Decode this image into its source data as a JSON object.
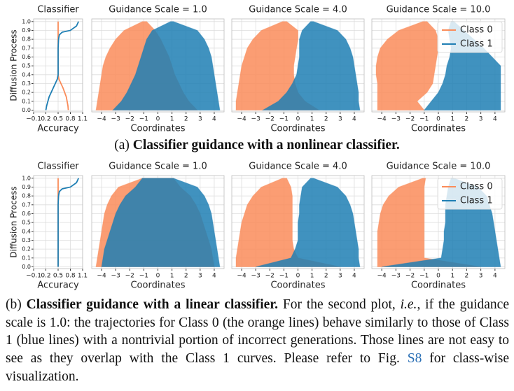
{
  "chart_data": [
    {
      "type": "accuracy",
      "title": "Classifier",
      "xlabel": "Accuracy",
      "ylabel": "Diffusion Process",
      "xlim": [
        -0.1,
        1.1
      ],
      "ylim": [
        -0.02,
        1.03
      ],
      "xticks": [
        {
          "value": -0.1,
          "label": "−0.1"
        },
        0.2,
        0.5,
        0.8,
        1.1
      ],
      "yticks": [
        {
          "value": 0,
          "label": "0.0"
        },
        0.1,
        0.2,
        0.3,
        0.4,
        0.5,
        0.6,
        0.7,
        0.8,
        0.9,
        {
          "value": 1,
          "label": "1.0"
        }
      ],
      "grid": true,
      "y": [
        0,
        0.05,
        0.1,
        0.15,
        0.2,
        0.25,
        0.3,
        0.35,
        0.4,
        0.5,
        0.6,
        0.7,
        0.8,
        0.85,
        0.88,
        0.9,
        0.95,
        1.0
      ],
      "series": [
        {
          "name": "Class 0",
          "color": "#fa8c5a",
          "x": [
            0.75,
            0.74,
            0.72,
            0.7,
            0.66,
            0.62,
            0.57,
            0.52,
            0.5,
            0.5,
            0.5,
            0.5,
            0.5,
            0.5,
            0.5,
            0.5,
            0.5,
            0.5
          ]
        },
        {
          "name": "Class 1",
          "color": "#1f7fb4",
          "x": [
            0.2,
            0.22,
            0.25,
            0.28,
            0.33,
            0.38,
            0.43,
            0.48,
            0.5,
            0.5,
            0.5,
            0.5,
            0.51,
            0.53,
            0.6,
            0.8,
            0.95,
            1.0
          ]
        }
      ]
    },
    {
      "type": "trajectory",
      "title": "Guidance Scale = 1.0",
      "xlabel": "Coordinates",
      "xlim": [
        -4.7,
        4.7
      ],
      "ylim": [
        -0.02,
        1.03
      ],
      "xticks": [
        {
          "value": -4,
          "label": "−4"
        },
        {
          "value": -3,
          "label": "−3"
        },
        {
          "value": -2,
          "label": "−2"
        },
        {
          "value": -1,
          "label": "−1"
        },
        0,
        1,
        2,
        3,
        4
      ],
      "yticks": [
        0,
        0.1,
        0.2,
        0.3,
        0.4,
        0.5,
        0.6,
        0.7,
        0.8,
        0.9,
        1
      ],
      "grid": true,
      "y": [
        0,
        0.1,
        0.2,
        0.3,
        0.4,
        0.5,
        0.6,
        0.7,
        0.8,
        0.9,
        1.0
      ],
      "series": [
        {
          "name": "Class 0",
          "color": "#fa8c5a",
          "lower": [
            -4.4,
            -4.3,
            -4.2,
            -4.1,
            -4,
            -3.9,
            -3.7,
            -3.4,
            -3,
            -2.4,
            -1.1
          ],
          "upper": [
            2.8,
            2.2,
            1.8,
            1.5,
            1.2,
            1,
            0.8,
            0.5,
            0.2,
            -0.2,
            -0.8
          ]
        },
        {
          "name": "Class 1",
          "color": "#1f7fb4",
          "lower": [
            -3.2,
            -2.6,
            -2.2,
            -1.9,
            -1.6,
            -1.4,
            -1.2,
            -1,
            -0.8,
            -0.4,
            0.9
          ],
          "upper": [
            4.4,
            4.3,
            4.2,
            4.1,
            4,
            3.9,
            3.8,
            3.6,
            3.3,
            2.8,
            1.1
          ]
        }
      ]
    },
    {
      "type": "trajectory",
      "title": "Guidance Scale = 4.0",
      "xlabel": "Coordinates",
      "xlim": [
        -4.7,
        4.7
      ],
      "ylim": [
        -0.02,
        1.03
      ],
      "xticks": [
        {
          "value": -4,
          "label": "−4"
        },
        {
          "value": -3,
          "label": "−3"
        },
        {
          "value": -2,
          "label": "−2"
        },
        {
          "value": -1,
          "label": "−1"
        },
        0,
        1,
        2,
        3,
        4
      ],
      "yticks": [
        0,
        0.1,
        0.2,
        0.3,
        0.4,
        0.5,
        0.6,
        0.7,
        0.8,
        0.9,
        1
      ],
      "grid": true,
      "y": [
        0,
        0.1,
        0.2,
        0.3,
        0.4,
        0.5,
        0.6,
        0.7,
        0.8,
        0.9,
        1.0
      ],
      "series": [
        {
          "name": "Class 0",
          "color": "#fa8c5a",
          "lower": [
            -4.4,
            -4.4,
            -4.3,
            -4.2,
            -4.1,
            -4,
            -3.8,
            -3.6,
            -3.2,
            -2.6,
            -1.1
          ],
          "upper": [
            1.5,
            0.5,
            0,
            -0.2,
            -0.3,
            -0.3,
            -0.2,
            -0.1,
            0,
            0,
            -0.8
          ]
        },
        {
          "name": "Class 1",
          "color": "#1f7fb4",
          "lower": [
            -2.5,
            -1.4,
            -0.8,
            -0.4,
            -0.1,
            0,
            0.1,
            0.1,
            0.1,
            0.3,
            0.9
          ],
          "upper": [
            4.4,
            4.3,
            4.3,
            4.2,
            4.1,
            4,
            3.9,
            3.7,
            3.4,
            2.8,
            1.1
          ]
        }
      ]
    },
    {
      "type": "trajectory",
      "title": "Guidance Scale = 10.0",
      "xlabel": "Coordinates",
      "xlim": [
        -4.7,
        4.7
      ],
      "ylim": [
        -0.02,
        1.03
      ],
      "legend": "upper right",
      "xticks": [
        {
          "value": -4,
          "label": "−4"
        },
        {
          "value": -3,
          "label": "−3"
        },
        {
          "value": -2,
          "label": "−2"
        },
        {
          "value": -1,
          "label": "−1"
        },
        0,
        1,
        2,
        3,
        4
      ],
      "yticks": [
        0,
        0.1,
        0.2,
        0.3,
        0.4,
        0.5,
        0.6,
        0.7,
        0.8,
        0.9,
        1
      ],
      "grid": true,
      "y": [
        0,
        0.1,
        0.2,
        0.3,
        0.4,
        0.5,
        0.6,
        0.7,
        0.8,
        0.9,
        1.0
      ],
      "series": [
        {
          "name": "Class 0",
          "color": "#fa8c5a",
          "lower": [
            -4.3,
            -4.3,
            -4.3,
            -4.3,
            -4.4,
            -4.4,
            -4.3,
            -4.1,
            -3.6,
            -2.8,
            -1.1
          ],
          "upper": [
            -1,
            -1.5,
            -0.8,
            -0.4,
            -0.3,
            -0.2,
            -0.1,
            0,
            0,
            -0.2,
            -0.8
          ]
        },
        {
          "name": "Class 1",
          "color": "#1f7fb4",
          "lower": [
            -1,
            -0.5,
            0,
            0.3,
            0.5,
            0.6,
            0.8,
            0.9,
            0.8,
            0.7,
            0.9
          ],
          "upper": [
            4.4,
            4.4,
            4.4,
            4.4,
            4.4,
            4.4,
            3.8,
            3.2,
            2.5,
            1.8,
            1.1
          ]
        }
      ]
    },
    {
      "type": "accuracy",
      "title": "Classifier",
      "xlabel": "Accuracy",
      "ylabel": "Diffusion Process",
      "xlim": [
        -0.1,
        1.1
      ],
      "ylim": [
        -0.02,
        1.03
      ],
      "xticks": [
        {
          "value": -0.1,
          "label": "−0.1"
        },
        0.2,
        0.5,
        0.8,
        1.1
      ],
      "yticks": [
        {
          "value": 0,
          "label": "0.0"
        },
        0.1,
        0.2,
        0.3,
        0.4,
        0.5,
        0.6,
        0.7,
        0.8,
        0.9,
        {
          "value": 1,
          "label": "1.0"
        }
      ],
      "grid": true,
      "y": [
        0,
        0.1,
        0.2,
        0.3,
        0.4,
        0.5,
        0.6,
        0.7,
        0.8,
        0.85,
        0.88,
        0.9,
        0.95,
        1.0
      ],
      "series": [
        {
          "name": "Class 0",
          "color": "#fa8c5a",
          "x": [
            0.5,
            0.5,
            0.5,
            0.5,
            0.5,
            0.5,
            0.5,
            0.5,
            0.5,
            0.5,
            0.5,
            0.5,
            0.5,
            0.5
          ]
        },
        {
          "name": "Class 1",
          "color": "#1f7fb4",
          "x": [
            0.5,
            0.5,
            0.5,
            0.5,
            0.5,
            0.5,
            0.5,
            0.5,
            0.51,
            0.53,
            0.6,
            0.8,
            0.95,
            1.0
          ]
        }
      ]
    },
    {
      "type": "trajectory",
      "title": "Guidance Scale = 1.0",
      "xlabel": "Coordinates",
      "xlim": [
        -4.7,
        4.7
      ],
      "ylim": [
        -0.02,
        1.03
      ],
      "xticks": [
        {
          "value": -4,
          "label": "−4"
        },
        {
          "value": -3,
          "label": "−3"
        },
        {
          "value": -2,
          "label": "−2"
        },
        {
          "value": -1,
          "label": "−1"
        },
        0,
        1,
        2,
        3,
        4
      ],
      "yticks": [
        0,
        0.1,
        0.2,
        0.3,
        0.4,
        0.5,
        0.6,
        0.7,
        0.8,
        0.9,
        1
      ],
      "grid": true,
      "y": [
        0,
        0.1,
        0.2,
        0.3,
        0.4,
        0.5,
        0.6,
        0.7,
        0.8,
        0.9,
        1.0
      ],
      "series": [
        {
          "name": "Class 0",
          "color": "#fa8c5a",
          "lower": [
            -4.4,
            -4.3,
            -4.2,
            -4.1,
            -4,
            -3.9,
            -3.8,
            -3.6,
            -3.3,
            -2.8,
            -1.1
          ],
          "upper": [
            4,
            3.9,
            3.8,
            3.6,
            3.4,
            3.2,
            3,
            2.7,
            2.3,
            1.6,
            1.1
          ]
        },
        {
          "name": "Class 1",
          "color": "#1f7fb4",
          "lower": [
            -4,
            -3.9,
            -3.8,
            -3.6,
            -3.4,
            -3.2,
            -3,
            -2.7,
            -2.3,
            -1.6,
            -1.1
          ],
          "upper": [
            4.4,
            4.3,
            4.2,
            4.1,
            4,
            3.9,
            3.8,
            3.6,
            3.3,
            2.8,
            1.1
          ]
        }
      ]
    },
    {
      "type": "trajectory",
      "title": "Guidance Scale = 4.0",
      "xlabel": "Coordinates",
      "xlim": [
        -4.7,
        4.7
      ],
      "ylim": [
        -0.02,
        1.03
      ],
      "xticks": [
        {
          "value": -4,
          "label": "−4"
        },
        {
          "value": -3,
          "label": "−3"
        },
        {
          "value": -2,
          "label": "−2"
        },
        {
          "value": -1,
          "label": "−1"
        },
        0,
        1,
        2,
        3,
        4
      ],
      "yticks": [
        0,
        0.1,
        0.2,
        0.3,
        0.4,
        0.5,
        0.6,
        0.7,
        0.8,
        0.9,
        1
      ],
      "grid": true,
      "y": [
        0,
        0.1,
        0.2,
        0.3,
        0.4,
        0.5,
        0.6,
        0.7,
        0.8,
        0.9,
        1.0
      ],
      "series": [
        {
          "name": "Class 0",
          "color": "#fa8c5a",
          "lower": [
            -4.4,
            -4.4,
            -4.3,
            -4.2,
            -4.1,
            -4,
            -3.8,
            -3.6,
            -3.2,
            -2.6,
            -1.1
          ],
          "upper": [
            3,
            0,
            -0.3,
            -0.4,
            -0.4,
            -0.4,
            -0.4,
            -0.4,
            -0.4,
            -0.5,
            -0.8
          ]
        },
        {
          "name": "Class 1",
          "color": "#1f7fb4",
          "lower": [
            -3,
            -0.5,
            -0.2,
            0,
            0,
            0,
            0.1,
            0.1,
            0.2,
            0.3,
            0.9
          ],
          "upper": [
            4.4,
            4.3,
            4.3,
            4.2,
            4.1,
            4,
            3.9,
            3.7,
            3.4,
            2.8,
            1.1
          ]
        }
      ]
    },
    {
      "type": "trajectory",
      "title": "Guidance Scale = 10.0",
      "xlabel": "Coordinates",
      "xlim": [
        -4.7,
        4.7
      ],
      "ylim": [
        -0.02,
        1.03
      ],
      "legend": "upper right",
      "xticks": [
        {
          "value": -4,
          "label": "−4"
        },
        {
          "value": -3,
          "label": "−3"
        },
        {
          "value": -2,
          "label": "−2"
        },
        {
          "value": -1,
          "label": "−1"
        },
        0,
        1,
        2,
        3,
        4
      ],
      "yticks": [
        0,
        0.1,
        0.2,
        0.3,
        0.4,
        0.5,
        0.6,
        0.7,
        0.8,
        0.9,
        1
      ],
      "grid": true,
      "y": [
        0,
        0.1,
        0.2,
        0.3,
        0.4,
        0.5,
        0.6,
        0.7,
        0.8,
        0.9,
        1.0
      ],
      "series": [
        {
          "name": "Class 0",
          "color": "#fa8c5a",
          "lower": [
            -4.3,
            -4.3,
            -4.3,
            -4.3,
            -4.3,
            -4.2,
            -4.1,
            -3.9,
            -3.5,
            -2.8,
            -1.1
          ],
          "upper": [
            3,
            -1,
            -1,
            -1,
            -1,
            -1,
            -1,
            -1,
            -1,
            -1,
            -0.9
          ]
        },
        {
          "name": "Class 1",
          "color": "#1f7fb4",
          "lower": [
            -4,
            0.2,
            0.3,
            0.4,
            0.4,
            0.5,
            0.5,
            0.5,
            0.6,
            0.7,
            0.9
          ],
          "upper": [
            4.4,
            4.3,
            4.2,
            4.1,
            4,
            3.9,
            3.8,
            3.6,
            3.4,
            2.8,
            1.1
          ]
        }
      ]
    }
  ],
  "captions": {
    "a": {
      "label": "(a)",
      "bold": "Classifier guidance with a nonlinear classifier."
    },
    "b": {
      "label": "(b)",
      "bold": "Classifier guidance with a linear classifier.",
      "text1": "For the second plot, ",
      "italic": "i.e.",
      "text2": ", if the guidance scale is 1.0: the trajectories for Class 0 (the orange lines) behave similarly to those of Class 1 (blue lines) with a nontrivial portion of incorrect generations. Those lines are not easy to see as they overlap with the Class 1 curves. Please refer to Fig. ",
      "link": "S8",
      "text3": " for class-wise visualization."
    }
  }
}
